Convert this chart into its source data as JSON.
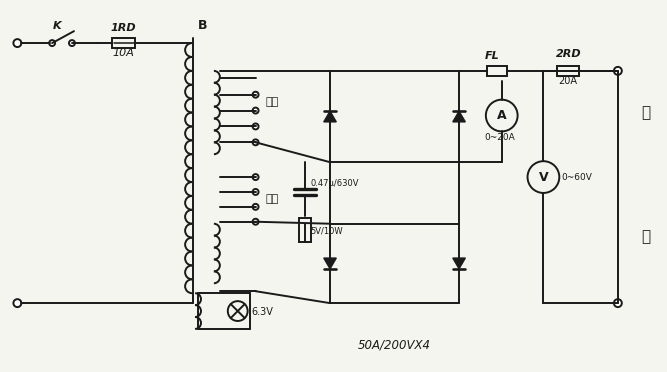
{
  "bg_color": "#f5f5f0",
  "line_color": "#1a1a1a",
  "lw": 1.4,
  "fig_width": 6.67,
  "fig_height": 3.72,
  "title_text": "50A/200VX4",
  "labels": {
    "K": "K",
    "1RD": "1RD",
    "B": "B",
    "10A": "10A",
    "FL": "FL",
    "2RD": "2RD",
    "20A": "20A",
    "0_47u": "0.47μ/630V",
    "5v10w": "5V/10W",
    "0_20A": "0~20A",
    "0_60V": "0~60V",
    "coarse": "粗调",
    "fine": "细调",
    "6_3V": "6.3V",
    "output_top": "输",
    "output_bot": "出"
  }
}
